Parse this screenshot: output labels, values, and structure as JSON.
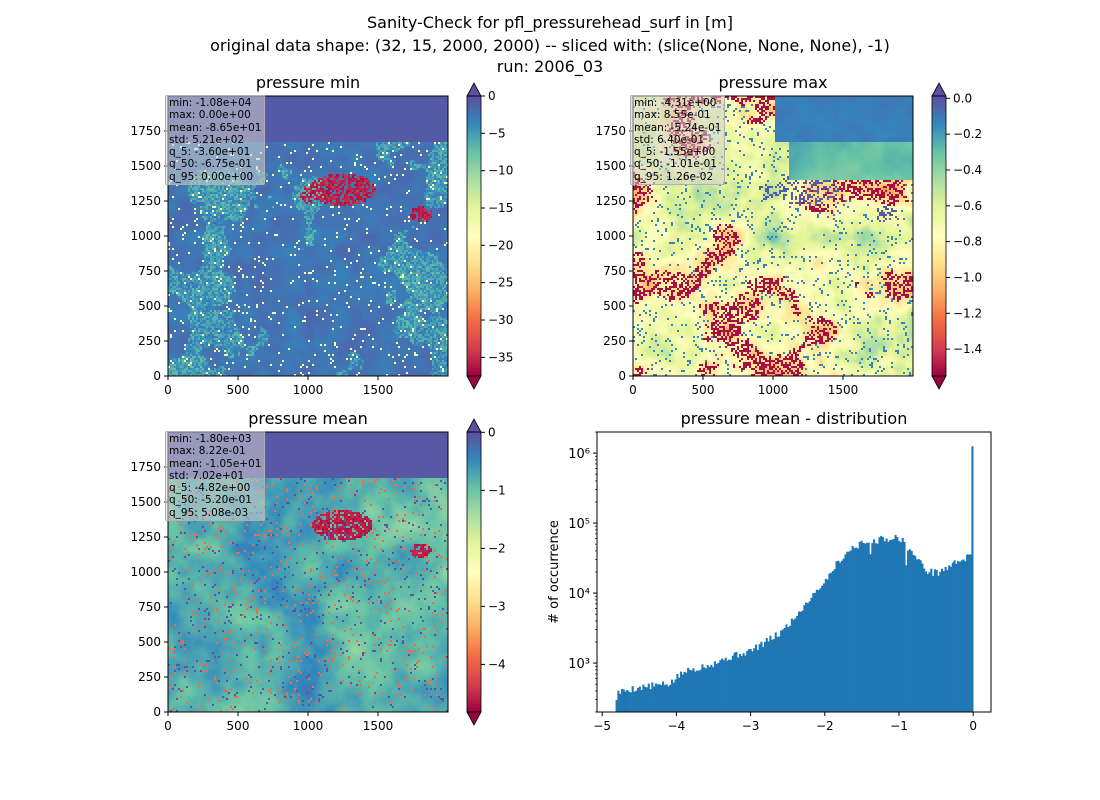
{
  "figure": {
    "title_lines": [
      "Sanity-Check for pfl_pressurehead_surf in [m]",
      "original data shape: (32, 15, 2000, 2000) -- sliced with: (slice(None, None, None), -1)",
      "run: 2006_03"
    ]
  },
  "chart_data": [
    {
      "type": "heatmap",
      "title": "pressure min",
      "colormap": "Spectral",
      "grid": false,
      "x_ticks": [
        "0",
        "500",
        "1000",
        "1500"
      ],
      "y_ticks": [
        "0",
        "250",
        "500",
        "750",
        "1000",
        "1250",
        "1500",
        "1750"
      ],
      "xlim": [
        0,
        2000
      ],
      "ylim": [
        0,
        2000
      ],
      "colorbar": {
        "vmin": -37.5,
        "vmax": 0,
        "extend": "both",
        "ticks": [
          "0",
          "−5",
          "−10",
          "−15",
          "−20",
          "−25",
          "−30",
          "−35"
        ],
        "tick_values": [
          0,
          -5,
          -10,
          -15,
          -20,
          -25,
          -30,
          -35
        ]
      },
      "stats": [
        "min: -1.08e+04",
        "max: 0.00e+00",
        "mean: -8.65e+01",
        "std: 5.21e+02",
        "q_5: -3.60e+01",
        "q_50: -6.75e-01",
        "q_95: 0.00e+00"
      ]
    },
    {
      "type": "heatmap",
      "title": "pressure max",
      "colormap": "Spectral",
      "grid": false,
      "x_ticks": [
        "0",
        "500",
        "1000",
        "1500"
      ],
      "y_ticks": [
        "0",
        "250",
        "500",
        "750",
        "1000",
        "1250",
        "1500",
        "1750"
      ],
      "xlim": [
        0,
        2000
      ],
      "ylim": [
        0,
        2000
      ],
      "colorbar": {
        "vmin": -1.55,
        "vmax": 0.013,
        "extend": "both",
        "ticks": [
          "0.0",
          "−0.2",
          "−0.4",
          "−0.6",
          "−0.8",
          "−1.0",
          "−1.2",
          "−1.4"
        ],
        "tick_values": [
          0,
          -0.2,
          -0.4,
          -0.6,
          -0.8,
          -1.0,
          -1.2,
          -1.4
        ]
      },
      "stats": [
        "min: -4.31e+00",
        "max: 8.55e-01",
        "mean: -5.24e-01",
        "std: 6.40e-01",
        "q_5: -1.55e+00",
        "q_50: -1.01e-01",
        "q_95: 1.26e-02"
      ]
    },
    {
      "type": "heatmap",
      "title": "pressure mean",
      "colormap": "Spectral",
      "grid": false,
      "x_ticks": [
        "0",
        "500",
        "1000",
        "1500"
      ],
      "y_ticks": [
        "0",
        "250",
        "500",
        "750",
        "1000",
        "1250",
        "1500",
        "1750"
      ],
      "xlim": [
        0,
        2000
      ],
      "ylim": [
        0,
        2000
      ],
      "colorbar": {
        "vmin": -4.82,
        "vmax": 0.005,
        "extend": "both",
        "ticks": [
          "0",
          "−1",
          "−2",
          "−3",
          "−4"
        ],
        "tick_values": [
          0,
          -1,
          -2,
          -3,
          -4
        ]
      },
      "stats": [
        "min: -1.80e+03",
        "max: 8.22e-01",
        "mean: -1.05e+01",
        "std: 7.02e+01",
        "q_5: -4.82e+00",
        "q_50: -5.20e-01",
        "q_95: 5.08e-03"
      ]
    },
    {
      "type": "bar",
      "title": "pressure mean - distribution",
      "ylabel": "# of occurrence",
      "xlabel": "",
      "yscale": "log",
      "color": "#1f77b4",
      "xlim": [
        -5.07,
        0.24
      ],
      "ylim": [
        200,
        2000000
      ],
      "x_ticks": [
        "−5",
        "−4",
        "−3",
        "−2",
        "−1",
        "0"
      ],
      "x_tick_values": [
        -5,
        -4,
        -3,
        -2,
        -1,
        0
      ],
      "y_ticks": [
        "10³",
        "10⁴",
        "10⁵",
        "10⁶"
      ],
      "y_tick_values": [
        1000,
        10000,
        100000,
        1000000
      ],
      "bins": {
        "start": -4.82,
        "end": 0.0,
        "count": 200
      },
      "profile": {
        "x": [
          -4.82,
          -4.79,
          -4.6,
          -4.3,
          -4.1,
          -3.9,
          -3.5,
          -3.2,
          -3.0,
          -2.8,
          -2.6,
          -2.4,
          -2.2,
          -2.0,
          -1.8,
          -1.6,
          -1.4,
          -1.2,
          -1.0,
          -0.9,
          -0.75,
          -0.6,
          -0.45,
          -0.3,
          -0.15,
          -0.02
        ],
        "y": [
          280,
          380,
          430,
          480,
          500,
          750,
          1000,
          1300,
          1500,
          2000,
          2700,
          4500,
          8500,
          15000,
          30000,
          47000,
          55000,
          60000,
          63000,
          48000,
          30000,
          20000,
          20000,
          25000,
          31000,
          33000
        ]
      },
      "spikes": [
        {
          "x": -0.01,
          "y": 1250000
        },
        {
          "x": -1.38,
          "y": 36000
        },
        {
          "x": -2.0,
          "y": 16000
        },
        {
          "x": -0.9,
          "y": 25000
        }
      ]
    }
  ]
}
